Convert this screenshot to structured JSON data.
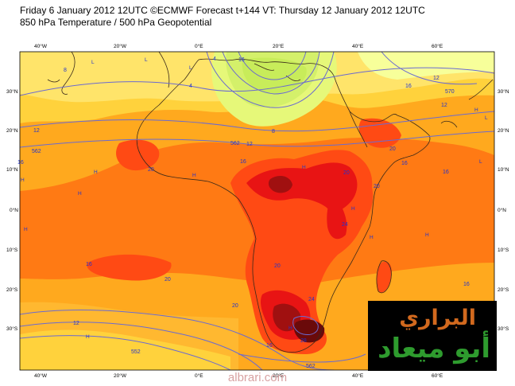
{
  "header": {
    "line1": "Friday 6 January 2012 12UTC ©ECMWF Forecast t+144 VT: Thursday 12 January 2012 12UTC",
    "line2": "850 hPa Temperature / 500 hPa Geopotential"
  },
  "axes": {
    "lat_labels": [
      "30°N",
      "20°N",
      "10°N",
      "0°N",
      "10°S",
      "20°S",
      "30°S"
    ],
    "lon_labels": [
      "40°W",
      "20°W",
      "0°E",
      "20°E",
      "40°E",
      "60°E"
    ]
  },
  "contour_labels": [
    "4",
    "8",
    "12",
    "12",
    "12",
    "16",
    "16",
    "16",
    "16",
    "16",
    "16",
    "20",
    "20",
    "20",
    "20",
    "20",
    "24",
    "24",
    "28",
    "12",
    "16",
    "16",
    "20",
    "20",
    "4",
    "8",
    "12",
    "16",
    "562",
    "562",
    "570",
    "552",
    "562"
  ],
  "highs": [
    "H",
    "H",
    "H",
    "H",
    "H",
    "H",
    "H",
    "H",
    "H",
    "H",
    "H",
    "H",
    "L",
    "L",
    "L",
    "L",
    "L"
  ],
  "colors": {
    "cold": "#f7ff9a",
    "cool": "#d4f06a",
    "mild": "#ffd23c",
    "warm": "#ffa91e",
    "hot": "#ff7a14",
    "hotter": "#ff4a14",
    "hottest": "#e81414",
    "extreme": "#a01010",
    "coast": "#3a2a1a",
    "contour": "#6a6ad0"
  },
  "logo": {
    "top": "البراري",
    "bottom": "أبو ميعاد"
  },
  "site": "albrari.com"
}
